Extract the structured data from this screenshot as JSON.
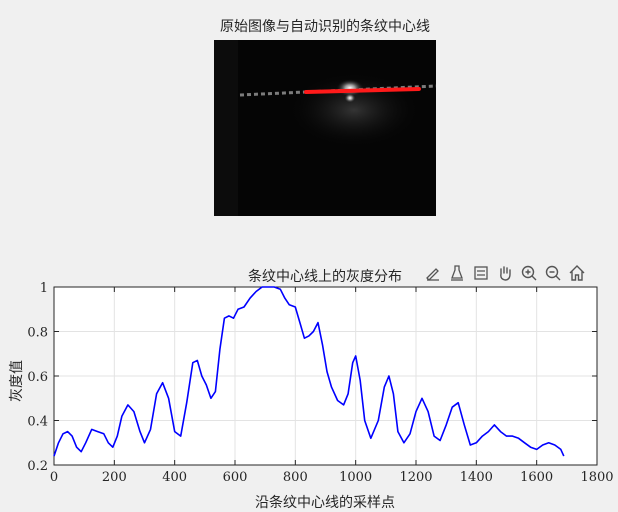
{
  "figure": {
    "image_title": "原始图像与自动识别的条纹中心线",
    "plot_title": "条纹中心线上的灰度分布"
  },
  "toolbar": {
    "icons": [
      "brush-icon",
      "data-tip-icon",
      "legend-icon",
      "pan-hand-icon",
      "zoom-in-icon",
      "zoom-out-icon",
      "home-icon"
    ]
  },
  "colors": {
    "line": "#0000ff",
    "stripe": "#ff0000"
  },
  "chart_data": {
    "type": "line",
    "title": "条纹中心线上的灰度分布",
    "xlabel": "沿条纹中心线的采样点",
    "ylabel": "灰度值",
    "xlim": [
      0,
      1800
    ],
    "ylim": [
      0.2,
      1
    ],
    "xticks": [
      "0",
      "200",
      "400",
      "600",
      "800",
      "1000",
      "1200",
      "1400",
      "1600",
      "1800"
    ],
    "yticks": [
      "0.2",
      "0.4",
      "0.6",
      "0.8",
      "1"
    ],
    "grid": true,
    "series": [
      {
        "color": "#0000ff",
        "x": [
          0,
          15,
          30,
          45,
          60,
          75,
          90,
          105,
          125,
          145,
          165,
          180,
          195,
          210,
          225,
          245,
          265,
          285,
          300,
          320,
          340,
          360,
          380,
          400,
          420,
          440,
          460,
          475,
          490,
          505,
          520,
          535,
          550,
          565,
          580,
          595,
          610,
          630,
          650,
          670,
          690,
          710,
          730,
          750,
          765,
          780,
          800,
          815,
          830,
          845,
          860,
          875,
          890,
          905,
          920,
          940,
          960,
          975,
          990,
          1000,
          1015,
          1030,
          1050,
          1075,
          1095,
          1110,
          1125,
          1140,
          1160,
          1180,
          1200,
          1220,
          1240,
          1260,
          1280,
          1300,
          1320,
          1340,
          1360,
          1380,
          1400,
          1420,
          1440,
          1460,
          1480,
          1500,
          1520,
          1540,
          1560,
          1580,
          1600,
          1620,
          1640,
          1660,
          1680,
          1690
        ],
        "y": [
          0.24,
          0.3,
          0.34,
          0.35,
          0.33,
          0.28,
          0.26,
          0.3,
          0.36,
          0.35,
          0.34,
          0.3,
          0.28,
          0.33,
          0.42,
          0.47,
          0.44,
          0.35,
          0.3,
          0.36,
          0.52,
          0.57,
          0.5,
          0.35,
          0.33,
          0.48,
          0.66,
          0.67,
          0.6,
          0.56,
          0.5,
          0.53,
          0.72,
          0.86,
          0.87,
          0.86,
          0.9,
          0.91,
          0.95,
          0.98,
          1.0,
          1.0,
          1.0,
          0.99,
          0.95,
          0.92,
          0.91,
          0.84,
          0.77,
          0.78,
          0.8,
          0.84,
          0.74,
          0.62,
          0.55,
          0.49,
          0.47,
          0.52,
          0.66,
          0.69,
          0.58,
          0.4,
          0.32,
          0.4,
          0.55,
          0.6,
          0.52,
          0.35,
          0.3,
          0.34,
          0.44,
          0.5,
          0.44,
          0.33,
          0.31,
          0.38,
          0.46,
          0.48,
          0.38,
          0.29,
          0.3,
          0.33,
          0.35,
          0.38,
          0.35,
          0.33,
          0.33,
          0.32,
          0.3,
          0.28,
          0.27,
          0.29,
          0.3,
          0.29,
          0.27,
          0.24
        ]
      }
    ]
  }
}
